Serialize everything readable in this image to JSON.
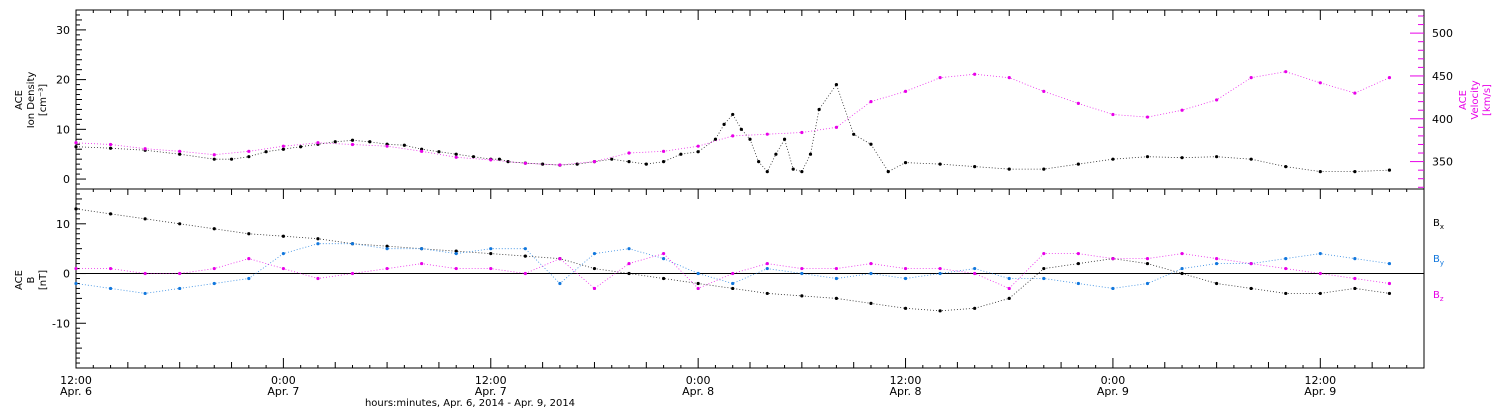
{
  "chart_data": [
    {
      "type": "scatter",
      "xlim": [
        0,
        78
      ],
      "ylim": [
        -2,
        34
      ],
      "y_ticks": [
        0,
        10,
        20,
        30
      ],
      "ylabel_lines": [
        "ACE",
        "Ion Density",
        "[cm⁻³]"
      ],
      "right_axis": {
        "ylim": [
          318,
          527
        ],
        "ticks": [
          350,
          400,
          450,
          500
        ],
        "label_lines": [
          "ACE",
          "Velocity",
          "[km/s]"
        ],
        "color": "#e800e8"
      },
      "series": [
        {
          "name": "Ion Density",
          "axis": "left",
          "color": "#000000",
          "x": [
            0,
            2,
            4,
            6,
            8,
            9,
            10,
            11,
            12,
            13,
            14,
            15,
            16,
            17,
            18,
            19,
            20,
            21,
            22,
            23,
            24,
            24.5,
            25,
            26,
            27,
            28,
            29,
            30,
            31,
            32,
            33,
            34,
            35,
            36,
            37,
            37.5,
            38,
            38.5,
            39,
            39.5,
            40,
            40.5,
            41,
            41.5,
            42,
            42.5,
            43,
            44,
            45,
            46,
            47,
            48,
            50,
            52,
            54,
            56,
            58,
            60,
            62,
            64,
            66,
            68,
            70,
            72,
            74,
            76
          ],
          "y": [
            6.5,
            6.2,
            5.8,
            5.0,
            4.0,
            4.0,
            4.5,
            5.5,
            6.0,
            6.5,
            7.0,
            7.5,
            7.8,
            7.5,
            7.0,
            6.8,
            6.0,
            5.5,
            5.0,
            4.5,
            4.0,
            4.0,
            3.5,
            3.2,
            3.0,
            2.8,
            3.0,
            3.5,
            4.0,
            3.5,
            3.0,
            3.5,
            5.0,
            5.5,
            8.0,
            11.0,
            13.0,
            10.0,
            8.0,
            3.5,
            1.5,
            5.0,
            8.0,
            2.0,
            1.5,
            5.0,
            14.0,
            19.0,
            9.0,
            7.0,
            1.5,
            3.3,
            3.0,
            2.5,
            2.0,
            2.0,
            3.0,
            4.0,
            4.5,
            4.3,
            4.5,
            4.0,
            2.5,
            1.5,
            1.5,
            1.8
          ]
        },
        {
          "name": "Velocity",
          "axis": "right",
          "color": "#e800e8",
          "x": [
            0,
            2,
            4,
            6,
            8,
            10,
            12,
            14,
            16,
            18,
            20,
            22,
            24,
            26,
            28,
            30,
            32,
            34,
            36,
            38,
            40,
            42,
            44,
            46,
            48,
            50,
            52,
            54,
            56,
            58,
            60,
            62,
            64,
            66,
            68,
            70,
            72,
            74,
            76
          ],
          "y": [
            372,
            370,
            365,
            362,
            358,
            362,
            368,
            372,
            370,
            368,
            362,
            355,
            352,
            348,
            346,
            350,
            360,
            362,
            368,
            380,
            382,
            384,
            390,
            420,
            432,
            448,
            452,
            448,
            432,
            418,
            405,
            402,
            410,
            422,
            448,
            455,
            442,
            430,
            448
          ]
        }
      ]
    },
    {
      "type": "scatter",
      "xlim": [
        0,
        78
      ],
      "ylim": [
        -19,
        17
      ],
      "y_ticks": [
        -10,
        0,
        10
      ],
      "zero_line": true,
      "ylabel_lines": [
        "ACE",
        "B",
        "[nT]"
      ],
      "legend_placement": "right",
      "series": [
        {
          "name": "Bx",
          "color": "#000000",
          "x": [
            0,
            2,
            4,
            6,
            8,
            10,
            12,
            14,
            16,
            18,
            20,
            22,
            24,
            26,
            28,
            30,
            32,
            34,
            36,
            38,
            40,
            42,
            44,
            46,
            48,
            50,
            52,
            54,
            56,
            58,
            60,
            62,
            64,
            66,
            68,
            70,
            72,
            74,
            76
          ],
          "y": [
            13,
            12,
            11,
            10,
            9,
            8,
            7.5,
            7,
            6,
            5.5,
            5,
            4.5,
            4,
            3.5,
            3,
            1,
            0,
            -1,
            -2,
            -3,
            -4,
            -4.5,
            -5,
            -6,
            -7,
            -7.5,
            -7,
            -5,
            1,
            2,
            3,
            2,
            0,
            -2,
            -3,
            -4,
            -4,
            -3,
            -4
          ]
        },
        {
          "name": "By",
          "color": "#1177dd",
          "x": [
            0,
            2,
            4,
            6,
            8,
            10,
            12,
            14,
            16,
            18,
            20,
            22,
            24,
            26,
            28,
            30,
            32,
            34,
            36,
            38,
            40,
            42,
            44,
            46,
            48,
            50,
            52,
            54,
            56,
            58,
            60,
            62,
            64,
            66,
            68,
            70,
            72,
            74,
            76
          ],
          "y": [
            -2,
            -3,
            -4,
            -3,
            -2,
            -1,
            4,
            6,
            6,
            5,
            5,
            4,
            5,
            5,
            -2,
            4,
            5,
            3,
            0,
            -2,
            1,
            0,
            -1,
            0,
            -1,
            0,
            1,
            -1,
            -1,
            -2,
            -3,
            -2,
            1,
            2,
            2,
            3,
            4,
            3,
            2
          ]
        },
        {
          "name": "Bz",
          "color": "#e800e8",
          "x": [
            0,
            2,
            4,
            6,
            8,
            10,
            12,
            14,
            16,
            18,
            20,
            22,
            24,
            26,
            28,
            30,
            32,
            34,
            36,
            38,
            40,
            42,
            44,
            46,
            48,
            50,
            52,
            54,
            56,
            58,
            60,
            62,
            64,
            66,
            68,
            70,
            72,
            74,
            76
          ],
          "y": [
            1,
            1,
            0,
            0,
            1,
            3,
            1,
            -1,
            0,
            1,
            2,
            1,
            1,
            0,
            3,
            -3,
            2,
            4,
            -3,
            0,
            2,
            1,
            1,
            2,
            1,
            1,
            0,
            -3,
            4,
            4,
            3,
            3,
            4,
            3,
            2,
            1,
            0,
            -1,
            -2
          ]
        }
      ]
    }
  ],
  "legend_labels": {
    "bx": {
      "base": "B",
      "sub": "x",
      "color": "#000000"
    },
    "by": {
      "base": "B",
      "sub": "y",
      "color": "#1177dd"
    },
    "bz": {
      "base": "B",
      "sub": "z",
      "color": "#e800e8"
    }
  },
  "x_axis": {
    "major_ticks": [
      {
        "x": 0,
        "time": "12:00",
        "date": "Apr. 6"
      },
      {
        "x": 12,
        "time": "0:00",
        "date": "Apr. 7"
      },
      {
        "x": 24,
        "time": "12:00",
        "date": "Apr. 7"
      },
      {
        "x": 36,
        "time": "0:00",
        "date": "Apr. 8"
      },
      {
        "x": 48,
        "time": "12:00",
        "date": "Apr. 8"
      },
      {
        "x": 60,
        "time": "0:00",
        "date": "Apr. 9"
      },
      {
        "x": 72,
        "time": "12:00",
        "date": "Apr. 9"
      }
    ],
    "xlabel": "hours:minutes, Apr.  6, 2014 - Apr.  9, 2014"
  }
}
